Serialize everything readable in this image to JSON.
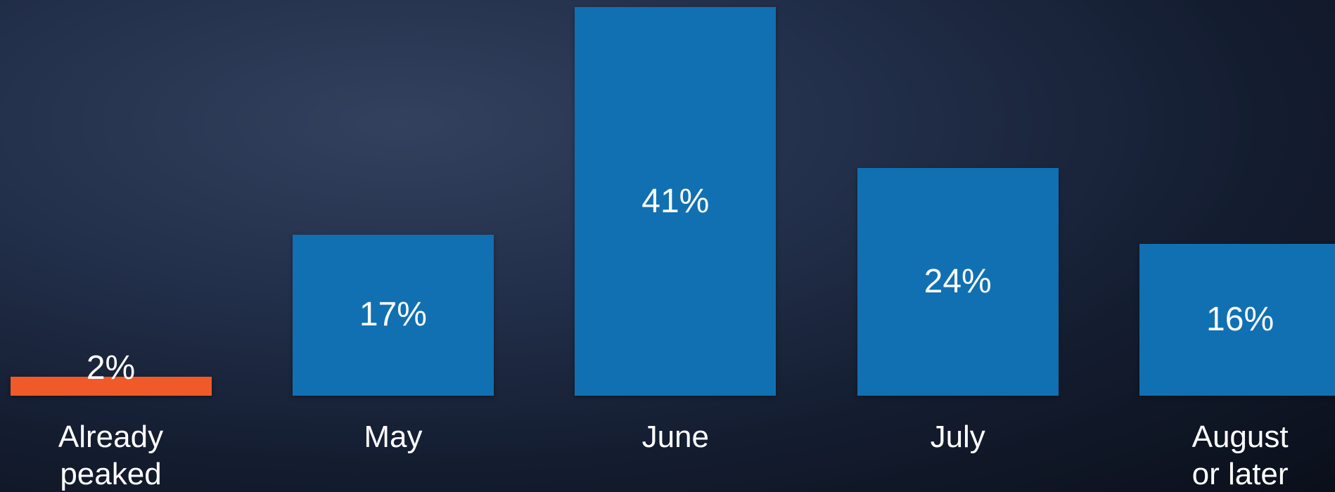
{
  "chart_data": {
    "type": "bar",
    "categories": [
      "Already peaked",
      "May",
      "June",
      "July",
      "August or later"
    ],
    "values": [
      2,
      17,
      41,
      24,
      16
    ],
    "value_labels": [
      "2%",
      "17%",
      "41%",
      "24%",
      "16%"
    ],
    "colors": [
      "#f05a28",
      "#1170b2",
      "#1170b2",
      "#1170b2",
      "#1170b2"
    ],
    "ylim": [
      0,
      41
    ]
  }
}
